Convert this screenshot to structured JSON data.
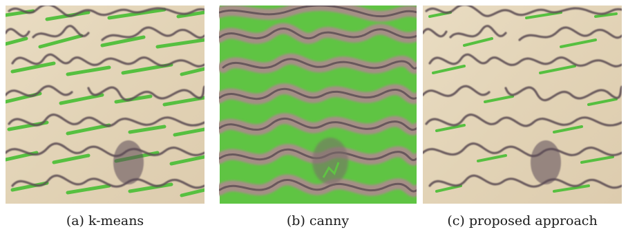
{
  "figure": {
    "panels": [
      {
        "id": "a",
        "caption": "(a) k-means",
        "image": "handwriting-segmentation-kmeans",
        "colors": {
          "paper": "#e6d8bd",
          "ink": "#5e4f55",
          "mask": "#4fbf3a"
        },
        "mask_coverage": 0.28
      },
      {
        "id": "b",
        "caption": "(b) canny",
        "image": "handwriting-segmentation-canny",
        "colors": {
          "paper": "#a58f86",
          "ink": "#5e4f55",
          "mask": "#5fc443"
        },
        "mask_coverage": 0.62
      },
      {
        "id": "c",
        "caption": "(c) proposed approach",
        "image": "handwriting-segmentation-proposed",
        "colors": {
          "paper": "#e6d8bd",
          "ink": "#5e4f55",
          "mask": "#4fbf3a"
        },
        "mask_coverage": 0.18
      }
    ]
  }
}
